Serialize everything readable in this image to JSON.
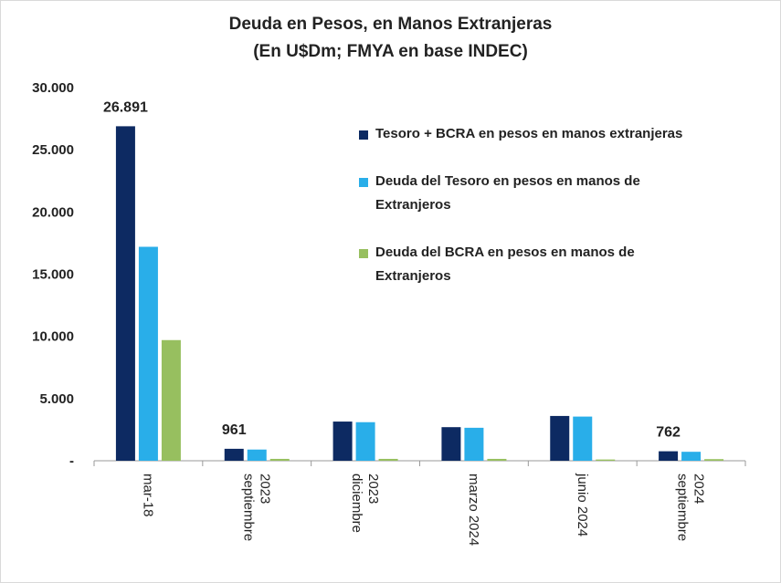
{
  "chart_data": {
    "type": "bar",
    "title": "Deuda en Pesos, en Manos Extranjeras",
    "subtitle": "(En U$Dm; FMYA en base INDEC)",
    "categories": [
      [
        "mar-18"
      ],
      [
        "septiembre",
        "2023"
      ],
      [
        "diciembre",
        "2023"
      ],
      [
        "marzo 2024"
      ],
      [
        "junio 2024"
      ],
      [
        "septiembre",
        "2024"
      ]
    ],
    "series": [
      {
        "name": "Tesoro + BCRA en pesos en manos extranjeras",
        "color": "#0d2a62",
        "values": [
          26891,
          961,
          3150,
          2700,
          3600,
          762
        ]
      },
      {
        "name": "Deuda del Tesoro en pesos en manos de Extranjeros",
        "color": "#29aee9",
        "values": [
          17200,
          900,
          3100,
          2650,
          3550,
          720
        ]
      },
      {
        "name": "Deuda del BCRA en pesos en manos de Extranjeros",
        "color": "#97bf5f",
        "values": [
          9700,
          150,
          150,
          150,
          100,
          130
        ]
      }
    ],
    "data_labels": [
      {
        "series": 0,
        "index": 0,
        "text": "26.891"
      },
      {
        "series": 0,
        "index": 1,
        "text": "961"
      },
      {
        "series": 0,
        "index": 5,
        "text": "762"
      }
    ],
    "yticks": [
      {
        "value": 0,
        "label": "-"
      },
      {
        "value": 5000,
        "label": "5.000"
      },
      {
        "value": 10000,
        "label": "10.000"
      },
      {
        "value": 15000,
        "label": "15.000"
      },
      {
        "value": 20000,
        "label": "20.000"
      },
      {
        "value": 25000,
        "label": "25.000"
      },
      {
        "value": 30000,
        "label": "30.000"
      }
    ],
    "ylim": [
      0,
      30000
    ],
    "xlabel": "",
    "ylabel": "",
    "grid": false,
    "legend_position": "top-right"
  }
}
